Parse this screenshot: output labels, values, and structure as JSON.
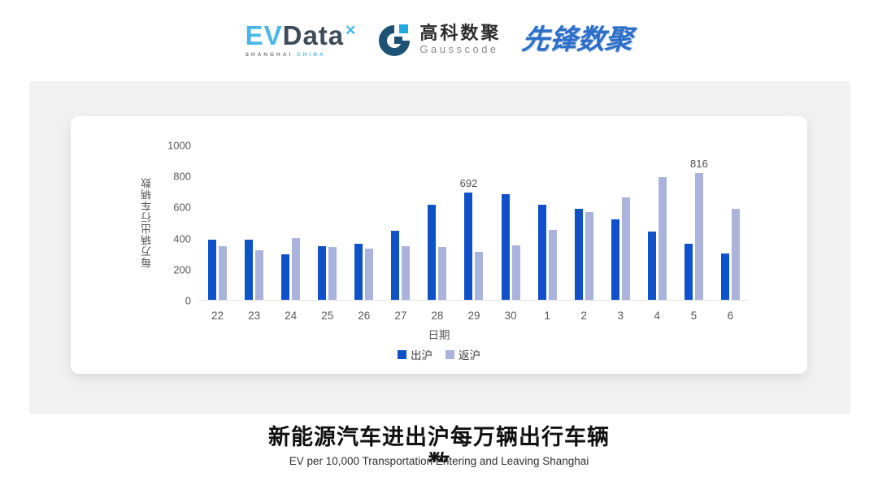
{
  "header": {
    "evdata": {
      "ev": "EV",
      "data": "Data",
      "star": "✕",
      "sub_left": "SHANGHAI",
      "sub_right": "CHINA"
    },
    "gausscode": {
      "cn": "高科数聚",
      "en": "Gausscode"
    },
    "pioneer": {
      "text": "先锋数聚"
    }
  },
  "colors": {
    "bar_dark_blue": "#0f51c9",
    "bar_light_periwinkle": "#aab3dc",
    "evdata_blue": "#49b7e8",
    "evdata_dark": "#3e4b59",
    "gausscode_dark": "#1d5275",
    "gausscode_cyan": "#21aadd",
    "pioneer_blue": "#2b6fc9",
    "card_gray": "#f1f1f2"
  },
  "chart_data": {
    "type": "bar",
    "title": "",
    "categories": [
      "22",
      "23",
      "24",
      "25",
      "26",
      "27",
      "28",
      "29",
      "30",
      "1",
      "2",
      "3",
      "4",
      "5",
      "6"
    ],
    "series": [
      {
        "name": "出沪",
        "color": "#0f51c9",
        "values": [
          390,
          385,
          295,
          345,
          360,
          445,
          610,
          692,
          680,
          610,
          585,
          520,
          440,
          360,
          300
        ]
      },
      {
        "name": "返沪",
        "color": "#aab3dc",
        "values": [
          345,
          320,
          400,
          340,
          330,
          345,
          340,
          310,
          350,
          450,
          565,
          660,
          790,
          816,
          585
        ]
      }
    ],
    "annotations": [
      {
        "series": "出沪",
        "category": "29",
        "text": "692"
      },
      {
        "series": "返沪",
        "category": "5",
        "text": "816"
      }
    ],
    "xlabel": "日期",
    "ylabel": "每万辆出行车辆数",
    "ylim": [
      0,
      1000
    ],
    "yticks": [
      0,
      200,
      400,
      600,
      800,
      1000
    ],
    "grid": false,
    "legend_position": "bottom"
  },
  "footer": {
    "title_line1": "新能源汽车进出沪每万辆出行车辆",
    "title_line2": "数",
    "subtitle": "EV per 10,000 Transportation Entering and Leaving Shanghai"
  }
}
